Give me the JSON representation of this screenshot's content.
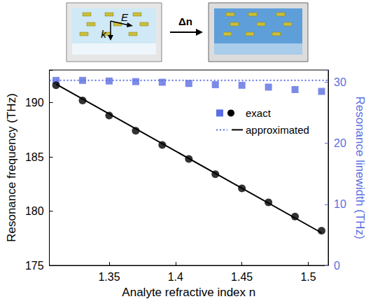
{
  "chart_data": {
    "type": "scatter",
    "x_label": "Analyte refractive index n",
    "y_label": "Resonance frequency (THz)",
    "y2_label": "Resonance linewidth (THz)",
    "xlim": [
      1.305,
      1.515
    ],
    "xticks": [
      1.35,
      1.4,
      1.45,
      1.5
    ],
    "ylim": [
      175,
      193
    ],
    "yticks": [
      175,
      180,
      185,
      190
    ],
    "y2lim": [
      0,
      32
    ],
    "y2ticks": [
      0,
      10,
      20,
      30
    ],
    "grid": false,
    "legend": "upper right",
    "annotations": [
      "E",
      "k",
      "Δn"
    ],
    "series": [
      {
        "name": "exact",
        "type": "scatter",
        "marker": "square",
        "color": "#5b6ee1",
        "axis": "y2",
        "x": [
          1.31,
          1.33,
          1.35,
          1.37,
          1.39,
          1.41,
          1.43,
          1.45,
          1.47,
          1.49,
          1.51
        ],
        "values": [
          30.3,
          30.3,
          30.2,
          30.1,
          30.0,
          29.8,
          29.6,
          29.5,
          29.2,
          28.8,
          28.5
        ]
      },
      {
        "name": "exact",
        "type": "scatter",
        "marker": "circle",
        "color": "#000000",
        "x": [
          1.31,
          1.33,
          1.35,
          1.37,
          1.39,
          1.41,
          1.43,
          1.45,
          1.47,
          1.49,
          1.51
        ],
        "values": [
          191.6,
          190.2,
          188.8,
          187.4,
          186.1,
          184.8,
          183.4,
          182.1,
          180.8,
          179.5,
          178.2
        ]
      },
      {
        "name": "approximated",
        "type": "line",
        "line_style": "dotted",
        "color": "#5b6ee1",
        "axis": "y2",
        "x": [
          1.305,
          1.515
        ],
        "values": [
          30.3,
          30.3
        ]
      },
      {
        "name": "approximated",
        "type": "line",
        "line_style": "solid",
        "color": "#000000",
        "x": [
          1.31,
          1.51
        ],
        "values": [
          191.7,
          178.0
        ]
      }
    ]
  }
}
